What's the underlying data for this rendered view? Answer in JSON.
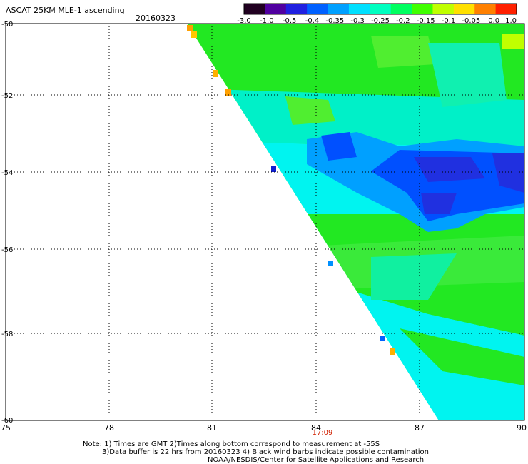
{
  "header": {
    "title": "ASCAT 25KM MLE-1 ascending",
    "date": "20160323"
  },
  "colorbar": {
    "labels": [
      "-3.0",
      "-1.0",
      "-0.5",
      "-0.4",
      "-0.35",
      "-0.3",
      "-0.25",
      "-0.2",
      "-0.15",
      "-0.1",
      "-0.05",
      "0.0",
      "1.0"
    ],
    "colors": [
      "#200020",
      "#5000a0",
      "#2020e0",
      "#0060ff",
      "#00a0ff",
      "#00e0ff",
      "#00ffc0",
      "#00ff60",
      "#40ff00",
      "#c0ff00",
      "#ffe000",
      "#ff8000",
      "#ff2000"
    ]
  },
  "axes": {
    "lat_labels": [
      "-50",
      "-52",
      "-54",
      "-56",
      "-58",
      "-60"
    ],
    "lon_labels": [
      "75",
      "78",
      "81",
      "84",
      "87",
      "90"
    ],
    "time_label": "17:09"
  },
  "footer": {
    "line1": "Note: 1) Times are GMT 2)Times along bottom correspond to measurement at -55S",
    "line2": "3)Data buffer is 22 hrs from 20160323 4) Black wind barbs indicate possible contamination",
    "line3": "NOAA/NESDIS/Center for Satellite Applications and Research"
  },
  "colors": {
    "swath_green": "#22e822",
    "swath_cyan": "#00f4f0",
    "swath_blue": "#0050ff",
    "swath_deep_blue": "#2030e0",
    "edge_orange": "#ffa000",
    "time_label_color": "#d02000"
  }
}
